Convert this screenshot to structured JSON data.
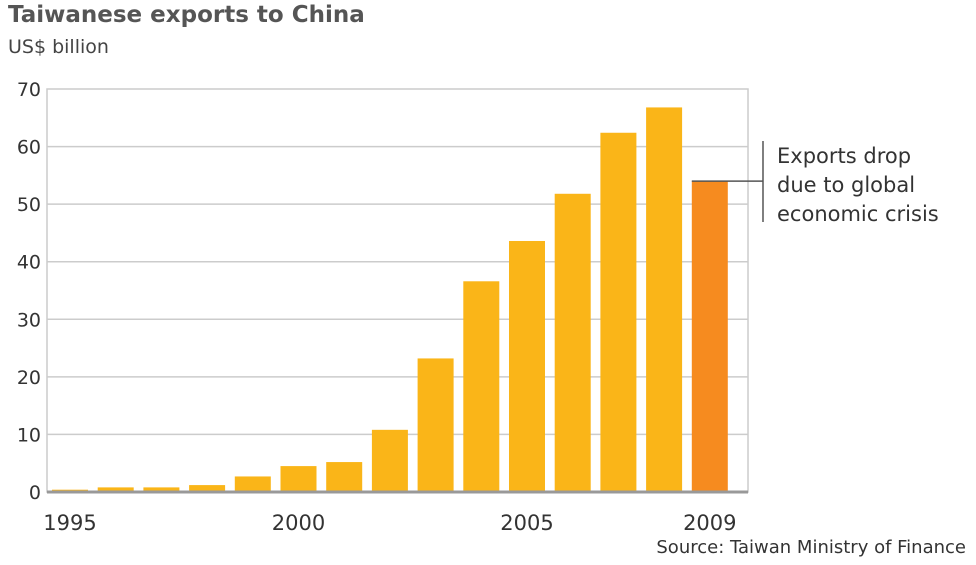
{
  "chart_data": {
    "type": "bar",
    "title": "Taiwanese exports to China",
    "subtitle": "US$ billion",
    "xlabel": "",
    "ylabel": "",
    "categories": [
      "1995",
      "1996",
      "1997",
      "1998",
      "1999",
      "2000",
      "2001",
      "2002",
      "2003",
      "2004",
      "2005",
      "2006",
      "2007",
      "2008",
      "2009"
    ],
    "values": [
      0.4,
      0.8,
      0.8,
      1.2,
      2.7,
      4.5,
      5.2,
      10.8,
      23.2,
      36.6,
      43.6,
      51.8,
      62.4,
      66.8,
      54.0
    ],
    "highlight_index": 14,
    "x_tick_labels": [
      {
        "index": 0,
        "label": "1995"
      },
      {
        "index": 5,
        "label": "2000"
      },
      {
        "index": 10,
        "label": "2005"
      },
      {
        "index": 14,
        "label": "2009"
      }
    ],
    "y_ticks": [
      0,
      10,
      20,
      30,
      40,
      50,
      60,
      70
    ],
    "ylim": [
      0,
      70
    ],
    "grid": true,
    "annotation": {
      "index": 14,
      "lines": [
        "Exports drop",
        "due to global",
        "economic crisis"
      ]
    },
    "source": "Source: Taiwan Ministry of Finance",
    "colors": {
      "bar": "#FAB518",
      "highlight": "#F68B1F",
      "grid": "#CCCCCC",
      "axis": "#999999",
      "annotation_line": "#555555"
    }
  }
}
